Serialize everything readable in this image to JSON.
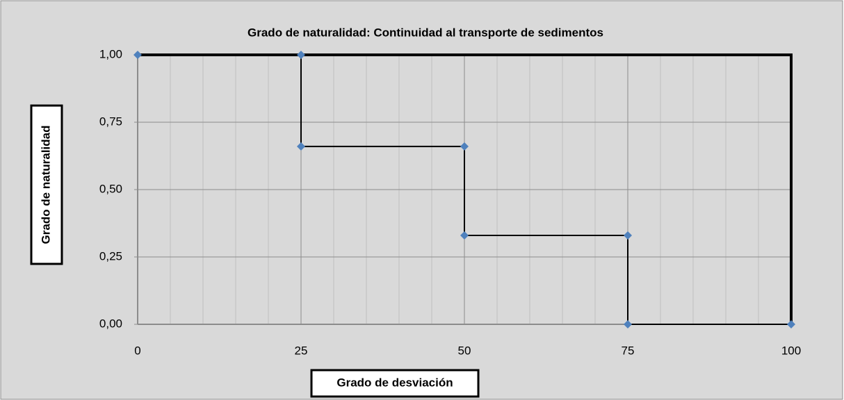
{
  "chart_data": {
    "type": "scatter",
    "title": "Grado de naturalidad: Continuidad al transporte de sedimentos",
    "xlabel": "Grado de desviación",
    "ylabel": "Grado de naturalidad",
    "series": [
      {
        "color": "#4f81bd",
        "line_color": "#000000",
        "x": [
          0,
          25,
          25,
          50,
          50,
          75,
          75,
          100
        ],
        "values": [
          1,
          1,
          0.66,
          0.66,
          0.33,
          0.33,
          0,
          0
        ]
      }
    ],
    "xlim": [
      0,
      100
    ],
    "ylim": [
      0,
      1
    ],
    "xticks": [
      0,
      25,
      50,
      75,
      100
    ],
    "xminor_ticks": [
      5,
      10,
      15,
      20,
      30,
      35,
      40,
      45,
      55,
      60,
      65,
      70,
      80,
      85,
      90,
      95
    ],
    "yticks": [
      {
        "value": 0,
        "label": "0,00"
      },
      {
        "value": 0.25,
        "label": "0,25"
      },
      {
        "value": 0.5,
        "label": "0,50"
      },
      {
        "value": 0.75,
        "label": "0,75"
      },
      {
        "value": 1,
        "label": "1,00"
      }
    ],
    "grid": true
  }
}
